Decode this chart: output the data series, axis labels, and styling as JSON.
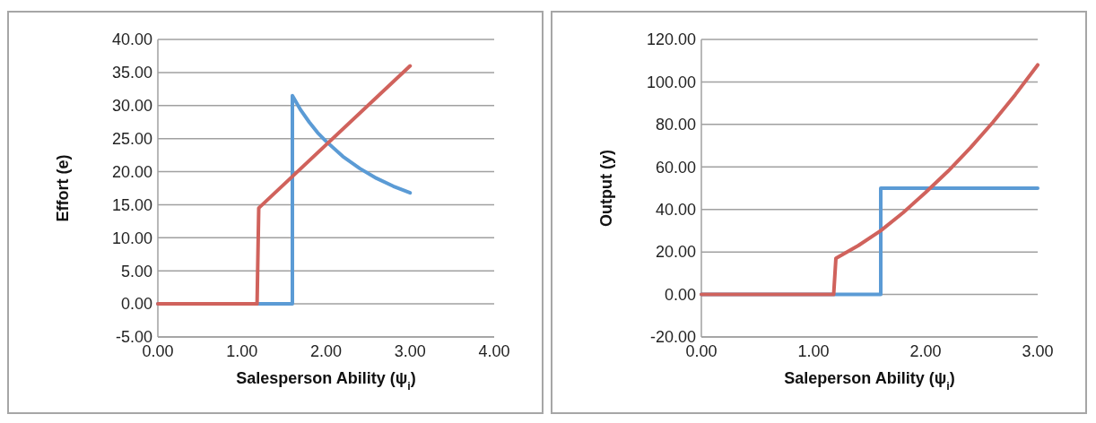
{
  "chart_data": [
    {
      "type": "line",
      "xlabel": "Salesperson Ability (ψ$_{i}$)",
      "ylabel": "Effort (e)",
      "xlim": [
        0,
        4
      ],
      "ylim": [
        -5,
        40
      ],
      "grid": "y",
      "line_style": "solid",
      "xticks": [
        {
          "value": 0,
          "label": "0.00"
        },
        {
          "value": 1,
          "label": "1.00"
        },
        {
          "value": 2,
          "label": "2.00"
        },
        {
          "value": 3,
          "label": "3.00"
        },
        {
          "value": 4,
          "label": "4.00"
        }
      ],
      "yticks": [
        {
          "value": -5,
          "label": "-5.00"
        },
        {
          "value": 0,
          "label": "0.00"
        },
        {
          "value": 5,
          "label": "5.00"
        },
        {
          "value": 10,
          "label": "10.00"
        },
        {
          "value": 15,
          "label": "15.00"
        },
        {
          "value": 20,
          "label": "20.00"
        },
        {
          "value": 25,
          "label": "25.00"
        },
        {
          "value": 30,
          "label": "30.00"
        },
        {
          "value": 35,
          "label": "35.00"
        },
        {
          "value": 40,
          "label": "40.00"
        }
      ],
      "series": [
        {
          "color": "#5b9bd5",
          "x": [
            0,
            1.6,
            1.6,
            1.7,
            1.8,
            1.9,
            2.0,
            2.2,
            2.4,
            2.6,
            2.8,
            3.0
          ],
          "values": [
            0,
            0,
            31.5,
            29.3,
            27.5,
            25.9,
            24.6,
            22.3,
            20.5,
            19,
            17.8,
            16.8
          ]
        },
        {
          "color": "#d0625c",
          "x": [
            0,
            1.18,
            1.2,
            3.0
          ],
          "values": [
            0,
            0,
            14.5,
            36
          ]
        }
      ]
    },
    {
      "type": "line",
      "xlabel": "Saleperson Ability (ψ$_{i}$)",
      "ylabel": "Output (y)",
      "xlim": [
        0,
        3
      ],
      "ylim": [
        -20,
        120
      ],
      "grid": "y",
      "line_style": "solid",
      "xticks": [
        {
          "value": 0,
          "label": "0.00"
        },
        {
          "value": 1,
          "label": "1.00"
        },
        {
          "value": 2,
          "label": "2.00"
        },
        {
          "value": 3,
          "label": "3.00"
        }
      ],
      "yticks": [
        {
          "value": -20,
          "label": "-20.00"
        },
        {
          "value": 0,
          "label": "0.00"
        },
        {
          "value": 20,
          "label": "20.00"
        },
        {
          "value": 40,
          "label": "40.00"
        },
        {
          "value": 60,
          "label": "60.00"
        },
        {
          "value": 80,
          "label": "80.00"
        },
        {
          "value": 100,
          "label": "100.00"
        },
        {
          "value": 120,
          "label": "120.00"
        }
      ],
      "series": [
        {
          "color": "#5b9bd5",
          "x": [
            0,
            1.6,
            1.6,
            3.0
          ],
          "values": [
            0,
            0,
            50,
            50
          ]
        },
        {
          "color": "#d0625c",
          "x": [
            0,
            1.18,
            1.2,
            1.4,
            1.6,
            1.8,
            2.0,
            2.2,
            2.4,
            2.6,
            2.8,
            3.0
          ],
          "values": [
            0,
            0,
            17,
            23,
            30,
            38.5,
            48,
            58,
            69,
            81,
            94,
            108
          ]
        }
      ]
    }
  ]
}
